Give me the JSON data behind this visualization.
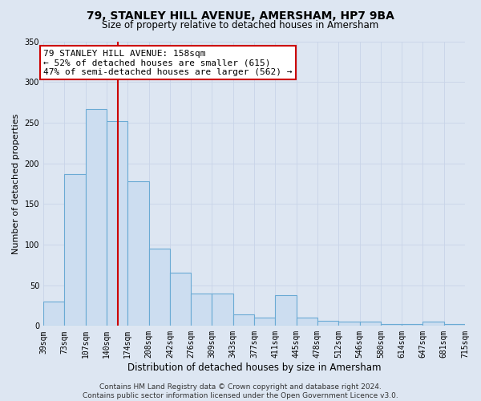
{
  "title": "79, STANLEY HILL AVENUE, AMERSHAM, HP7 9BA",
  "subtitle": "Size of property relative to detached houses in Amersham",
  "xlabel": "Distribution of detached houses by size in Amersham",
  "ylabel": "Number of detached properties",
  "bin_edges": [
    39,
    73,
    107,
    140,
    174,
    208,
    242,
    276,
    309,
    343,
    377,
    411,
    445,
    478,
    512,
    546,
    580,
    614,
    647,
    681,
    715
  ],
  "bar_heights": [
    30,
    187,
    267,
    252,
    178,
    95,
    65,
    40,
    40,
    14,
    10,
    38,
    10,
    6,
    5,
    5,
    2,
    2,
    5,
    2
  ],
  "tick_labels": [
    "39sqm",
    "73sqm",
    "107sqm",
    "140sqm",
    "174sqm",
    "208sqm",
    "242sqm",
    "276sqm",
    "309sqm",
    "343sqm",
    "377sqm",
    "411sqm",
    "445sqm",
    "478sqm",
    "512sqm",
    "546sqm",
    "580sqm",
    "614sqm",
    "647sqm",
    "681sqm",
    "715sqm"
  ],
  "bar_color": "#ccddf0",
  "bar_edge_color": "#6aaad4",
  "vline_x": 158,
  "vline_color": "#cc0000",
  "annotation_text": "79 STANLEY HILL AVENUE: 158sqm\n← 52% of detached houses are smaller (615)\n47% of semi-detached houses are larger (562) →",
  "annotation_box_color": "#ffffff",
  "annotation_box_edge_color": "#cc0000",
  "ylim": [
    0,
    350
  ],
  "yticks": [
    0,
    50,
    100,
    150,
    200,
    250,
    300,
    350
  ],
  "grid_color": "#c8d4e8",
  "background_color": "#dde6f2",
  "plot_bg_color": "#dde6f2",
  "footer_text": "Contains HM Land Registry data © Crown copyright and database right 2024.\nContains public sector information licensed under the Open Government Licence v3.0.",
  "title_fontsize": 10,
  "subtitle_fontsize": 8.5,
  "xlabel_fontsize": 8.5,
  "ylabel_fontsize": 8,
  "tick_fontsize": 7,
  "annotation_fontsize": 8,
  "footer_fontsize": 6.5
}
